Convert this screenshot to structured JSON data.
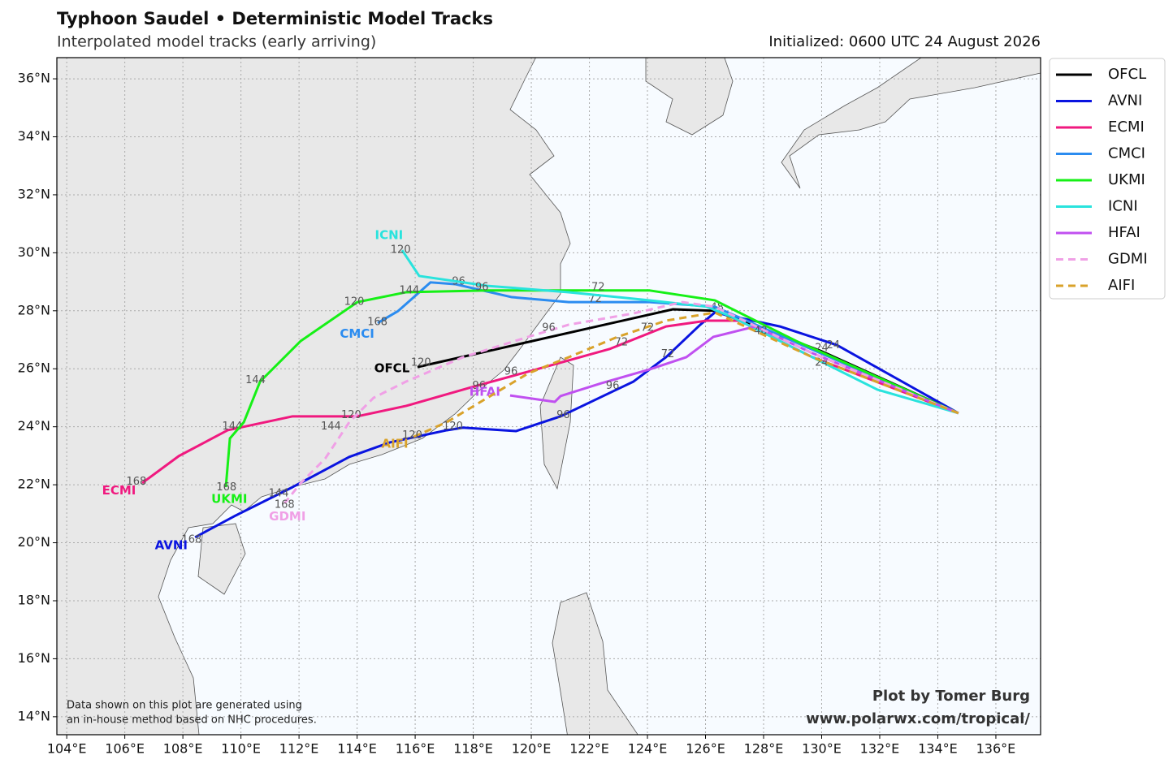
{
  "chart_data": {
    "type": "track-map",
    "title": "Typhoon Saudel • Deterministic Model Tracks",
    "subtitle": "Interpolated model tracks (early arriving)",
    "init_label": "Initialized: 0600 UTC 24 August 2026",
    "credit": [
      "Plot by Tomer Burg",
      "www.polarwx.com/tropical/"
    ],
    "disclaimer": [
      "Data shown on this plot are generated using",
      "an in-house method based on NHC procedures."
    ],
    "xlim": [
      103.66,
      137.54
    ],
    "ylim": [
      13.38,
      36.73
    ],
    "xticks": [
      {
        "value": 104,
        "label": "104°E"
      },
      {
        "value": 106,
        "label": "106°E"
      },
      {
        "value": 108,
        "label": "108°E"
      },
      {
        "value": 110,
        "label": "110°E"
      },
      {
        "value": 112,
        "label": "112°E"
      },
      {
        "value": 114,
        "label": "114°E"
      },
      {
        "value": 116,
        "label": "116°E"
      },
      {
        "value": 118,
        "label": "118°E"
      },
      {
        "value": 120,
        "label": "120°E"
      },
      {
        "value": 122,
        "label": "122°E"
      },
      {
        "value": 124,
        "label": "124°E"
      },
      {
        "value": 126,
        "label": "126°E"
      },
      {
        "value": 128,
        "label": "128°E"
      },
      {
        "value": 130,
        "label": "130°E"
      },
      {
        "value": 132,
        "label": "132°E"
      },
      {
        "value": 134,
        "label": "134°E"
      },
      {
        "value": 136,
        "label": "136°E"
      }
    ],
    "yticks": [
      {
        "value": 14,
        "label": "14°N"
      },
      {
        "value": 16,
        "label": "16°N"
      },
      {
        "value": 18,
        "label": "18°N"
      },
      {
        "value": 20,
        "label": "20°N"
      },
      {
        "value": 22,
        "label": "22°N"
      },
      {
        "value": 24,
        "label": "24°N"
      },
      {
        "value": 26,
        "label": "26°N"
      },
      {
        "value": 28,
        "label": "28°N"
      },
      {
        "value": 30,
        "label": "30°N"
      },
      {
        "value": 32,
        "label": "32°N"
      },
      {
        "value": 34,
        "label": "34°N"
      },
      {
        "value": 36,
        "label": "36°N"
      }
    ],
    "grid": true,
    "legend": "outside-right",
    "series": [
      {
        "name": "OFCL",
        "color": "#000000",
        "dashed": false,
        "lon": [
          134.71,
          129.96,
          126.32,
          124.87,
          116.08
        ],
        "lat": [
          24.47,
          26.62,
          28.0,
          28.05,
          26.06
        ],
        "hours": [
          {
            "hour": 24,
            "lon": 130.0,
            "lat": 26.7
          },
          {
            "hour": 48,
            "lon": 126.4,
            "lat": 28.1
          },
          {
            "hour": 120,
            "lon": 116.2,
            "lat": 26.2
          }
        ],
        "label_at": [
          115.2,
          26.0
        ]
      },
      {
        "name": "AVNI",
        "color": "#0a14e0",
        "dashed": false,
        "lon": [
          134.71,
          130.52,
          128.56,
          126.32,
          125.82,
          124.64,
          123.52,
          121.01,
          119.47,
          117.65,
          117.09,
          115.13,
          113.73,
          111.78,
          109.82,
          108.42
        ],
        "lat": [
          24.47,
          26.82,
          27.46,
          27.94,
          27.52,
          26.4,
          25.56,
          24.36,
          23.85,
          23.97,
          23.88,
          23.46,
          22.96,
          21.92,
          20.94,
          20.19
        ],
        "hours": [
          {
            "hour": 24,
            "lon": 130.4,
            "lat": 26.8
          },
          {
            "hour": 72,
            "lon": 124.7,
            "lat": 26.5
          },
          {
            "hour": 96,
            "lon": 121.1,
            "lat": 24.4
          },
          {
            "hour": 120,
            "lon": 117.3,
            "lat": 24.0
          },
          {
            "hour": 144,
            "lon": 111.3,
            "lat": 21.7
          },
          {
            "hour": 168,
            "lon": 108.3,
            "lat": 20.1
          }
        ],
        "label_at": [
          107.6,
          19.9
        ]
      },
      {
        "name": "ECMI",
        "color": "#f0197f",
        "dashed": false,
        "lon": [
          134.71,
          129.68,
          127.16,
          126.04,
          124.64,
          122.69,
          119.89,
          117.93,
          115.69,
          114.01,
          111.78,
          109.54,
          107.86,
          106.6
        ],
        "lat": [
          24.47,
          26.4,
          27.66,
          27.66,
          27.46,
          26.68,
          25.9,
          25.36,
          24.72,
          24.36,
          24.36,
          23.88,
          22.99,
          22.06
        ],
        "hours": [
          {
            "hour": 72,
            "lon": 123.1,
            "lat": 26.9
          },
          {
            "hour": 96,
            "lon": 118.2,
            "lat": 25.4
          },
          {
            "hour": 120,
            "lon": 113.8,
            "lat": 24.4
          },
          {
            "hour": 144,
            "lon": 109.7,
            "lat": 24.0
          },
          {
            "hour": 168,
            "lon": 106.4,
            "lat": 22.1
          }
        ],
        "label_at": [
          105.8,
          21.8
        ]
      },
      {
        "name": "CMCI",
        "color": "#2b8cf0",
        "dashed": false,
        "lon": [
          134.71,
          129.96,
          126.32,
          124.08,
          121.29,
          119.33,
          117.37,
          116.53,
          115.41,
          114.71
        ],
        "lat": [
          24.47,
          26.54,
          28.14,
          28.3,
          28.3,
          28.47,
          28.92,
          28.98,
          27.99,
          27.58
        ],
        "hours": [
          {
            "hour": 72,
            "lon": 122.2,
            "lat": 28.4
          },
          {
            "hour": 96,
            "lon": 117.5,
            "lat": 29.0
          },
          {
            "hour": 168,
            "lon": 114.7,
            "lat": 27.6
          }
        ],
        "label_at": [
          114.0,
          27.2
        ]
      },
      {
        "name": "UKMI",
        "color": "#16f016",
        "dashed": false,
        "lon": [
          134.71,
          129.12,
          126.32,
          124.08,
          121.85,
          118.49,
          115.69,
          114.01,
          112.06,
          110.66,
          110.1,
          109.62,
          109.48
        ],
        "lat": [
          24.47,
          26.96,
          28.36,
          28.7,
          28.7,
          28.7,
          28.64,
          28.3,
          26.96,
          25.56,
          24.16,
          23.6,
          21.92
        ],
        "hours": [
          {
            "hour": 72,
            "lon": 122.3,
            "lat": 28.8
          },
          {
            "hour": 120,
            "lon": 113.9,
            "lat": 28.3
          },
          {
            "hour": 144,
            "lon": 110.5,
            "lat": 25.6
          },
          {
            "hour": 168,
            "lon": 109.5,
            "lat": 21.9
          }
        ],
        "label_at": [
          109.6,
          21.5
        ]
      },
      {
        "name": "ICNI",
        "color": "#29e3dd",
        "dashed": false,
        "lon": [
          134.71,
          131.92,
          129.96,
          128.56,
          126.88,
          126.04,
          124.08,
          121.29,
          118.49,
          116.14,
          115.55
        ],
        "lat": [
          24.47,
          25.28,
          26.26,
          26.96,
          27.8,
          28.14,
          28.36,
          28.64,
          28.86,
          29.2,
          30.09
        ],
        "hours": [
          {
            "hour": 24,
            "lon": 130.0,
            "lat": 26.2
          },
          {
            "hour": 96,
            "lon": 118.3,
            "lat": 28.8
          },
          {
            "hour": 120,
            "lon": 115.5,
            "lat": 30.1
          },
          {
            "hour": 144,
            "lon": 115.8,
            "lat": 28.7
          }
        ],
        "label_at": [
          115.1,
          30.6
        ]
      },
      {
        "name": "HFAI",
        "color": "#c050f0",
        "dashed": false,
        "lon": [
          134.71,
          129.68,
          127.72,
          126.27,
          125.34,
          124.08,
          122.41,
          121.01,
          120.81,
          119.27
        ],
        "lat": [
          24.47,
          26.54,
          27.46,
          27.1,
          26.4,
          25.98,
          25.5,
          25.06,
          24.86,
          25.08
        ],
        "hours": [
          {
            "hour": 48,
            "lon": 127.9,
            "lat": 27.3
          },
          {
            "hour": 96,
            "lon": 122.8,
            "lat": 25.4
          }
        ],
        "label_at": [
          118.4,
          25.2
        ]
      },
      {
        "name": "GDMI",
        "color": "#f0a0e6",
        "dashed": true,
        "lon": [
          134.71,
          129.68,
          126.32,
          125.2,
          123.52,
          121.29,
          119.89,
          117.65,
          115.69,
          114.57,
          113.73,
          112.9,
          112.06,
          111.5
        ],
        "lat": [
          24.47,
          26.54,
          28.14,
          28.3,
          27.91,
          27.52,
          27.1,
          26.4,
          25.56,
          25.0,
          24.16,
          22.9,
          22.06,
          21.36
        ],
        "hours": [
          {
            "hour": 96,
            "lon": 120.6,
            "lat": 27.4
          },
          {
            "hour": 144,
            "lon": 113.1,
            "lat": 24.0
          },
          {
            "hour": 168,
            "lon": 111.5,
            "lat": 21.3
          }
        ],
        "label_at": [
          111.6,
          20.9
        ]
      },
      {
        "name": "AIFI",
        "color": "#d9a22a",
        "dashed": true,
        "lon": [
          134.71,
          129.68,
          126.32,
          124.64,
          122.97,
          121.29,
          119.89,
          118.49,
          117.09,
          115.83
        ],
        "lat": [
          24.47,
          26.4,
          27.94,
          27.66,
          27.1,
          26.4,
          25.84,
          25.0,
          24.16,
          23.6
        ],
        "hours": [
          {
            "hour": 72,
            "lon": 124.0,
            "lat": 27.4
          },
          {
            "hour": 96,
            "lon": 119.3,
            "lat": 25.9
          },
          {
            "hour": 120,
            "lon": 115.9,
            "lat": 23.7
          }
        ],
        "label_at": [
          115.3,
          23.4
        ]
      }
    ]
  }
}
